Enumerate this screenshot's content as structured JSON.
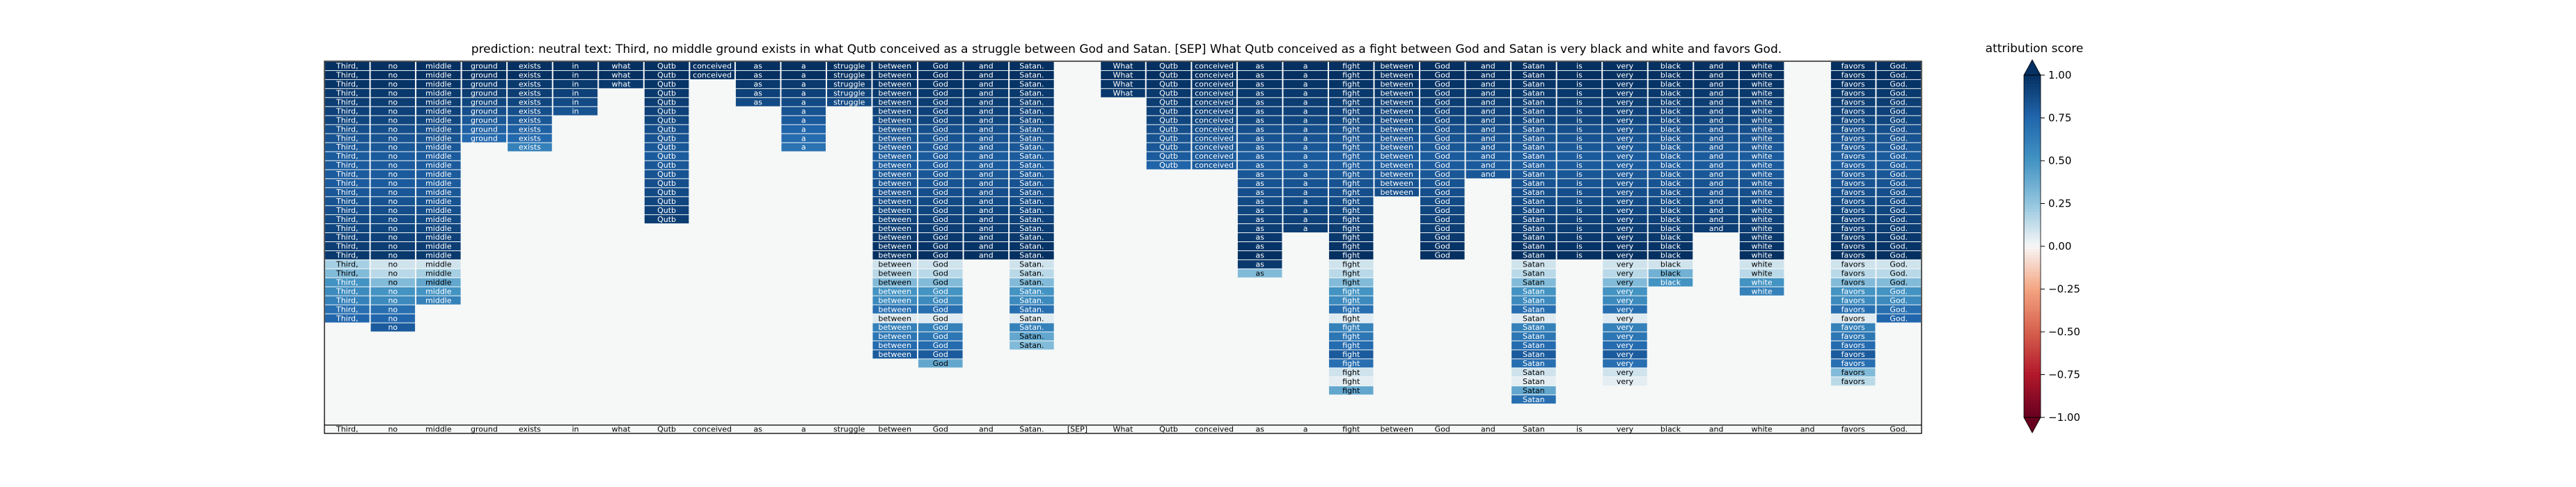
{
  "chart_data": {
    "type": "heatmap",
    "title": "prediction:  neutral     text:  Third, no middle ground exists in what Qutb conceived as a struggle between God and Satan. [SEP] What Qutb conceived as a fight between God and Satan is very black and white and favors God.",
    "tokens": [
      "Third,",
      "no",
      "middle",
      "ground",
      "exists",
      "in",
      "what",
      "Qutb",
      "conceived",
      "as",
      "a",
      "struggle",
      "between",
      "God",
      "and",
      "Satan.",
      "[SEP]",
      "What",
      "Qutb",
      "conceived",
      "as",
      "a",
      "fight",
      "between",
      "God",
      "and",
      "Satan",
      "is",
      "very",
      "black",
      "and",
      "white",
      "and",
      "favors",
      "God."
    ],
    "column_heights": [
      29,
      30,
      27,
      9,
      10,
      6,
      3,
      18,
      2,
      5,
      10,
      5,
      33,
      34,
      22,
      32,
      0,
      4,
      12,
      12,
      24,
      19,
      37,
      15,
      22,
      13,
      38,
      22,
      36,
      25,
      19,
      26,
      0,
      36,
      29
    ],
    "column_values": [
      [
        1.0,
        1.0,
        0.98,
        0.96,
        0.94,
        0.92,
        0.9,
        0.86,
        0.84,
        0.82,
        0.8,
        0.8,
        0.8,
        0.8,
        0.82,
        0.84,
        0.86,
        0.88,
        0.9,
        0.92,
        0.94,
        0.96,
        0.2,
        0.3,
        0.5,
        0.55,
        0.6,
        0.7,
        0.75
      ],
      [
        1.0,
        1.0,
        0.98,
        0.96,
        0.94,
        0.92,
        0.9,
        0.86,
        0.84,
        0.82,
        0.8,
        0.8,
        0.8,
        0.8,
        0.82,
        0.84,
        0.86,
        0.88,
        0.9,
        0.92,
        0.94,
        0.96,
        0.1,
        0.15,
        0.3,
        0.5,
        0.55,
        0.7,
        0.75,
        0.8
      ],
      [
        1.0,
        1.0,
        0.98,
        0.96,
        0.94,
        0.92,
        0.9,
        0.86,
        0.84,
        0.82,
        0.8,
        0.8,
        0.8,
        0.8,
        0.82,
        0.84,
        0.86,
        0.88,
        0.9,
        0.92,
        0.94,
        0.96,
        0.1,
        0.2,
        0.4,
        0.5,
        0.6
      ],
      [
        1.0,
        1.0,
        0.96,
        0.94,
        0.9,
        0.86,
        0.82,
        0.78,
        0.74
      ],
      [
        1.0,
        1.0,
        0.96,
        0.94,
        0.9,
        0.86,
        0.82,
        0.78,
        0.74,
        0.6
      ],
      [
        1.0,
        1.0,
        0.96,
        0.92,
        0.88,
        0.84
      ],
      [
        1.0,
        1.0,
        0.96
      ],
      [
        1.0,
        1.0,
        0.98,
        0.96,
        0.94,
        0.92,
        0.9,
        0.86,
        0.84,
        0.82,
        0.8,
        0.82,
        0.84,
        0.86,
        0.88,
        0.9,
        0.92,
        0.94
      ],
      [
        1.0,
        1.0
      ],
      [
        1.0,
        1.0,
        0.96,
        0.92,
        0.88
      ],
      [
        1.0,
        1.0,
        0.96,
        0.92,
        0.88,
        0.84,
        0.8,
        0.76,
        0.72,
        0.68
      ],
      [
        1.0,
        1.0,
        0.96,
        0.92,
        0.88
      ],
      [
        1.0,
        1.0,
        0.98,
        0.96,
        0.94,
        0.92,
        0.9,
        0.86,
        0.84,
        0.82,
        0.8,
        0.8,
        0.82,
        0.84,
        0.86,
        0.88,
        0.9,
        0.92,
        0.94,
        0.96,
        0.98,
        1.0,
        0.1,
        0.15,
        0.3,
        0.5,
        0.55,
        0.7,
        0.06,
        0.6,
        0.66,
        0.72,
        0.8
      ],
      [
        1.0,
        1.0,
        0.98,
        0.96,
        0.94,
        0.92,
        0.9,
        0.86,
        0.84,
        0.82,
        0.8,
        0.8,
        0.82,
        0.84,
        0.86,
        0.88,
        0.9,
        0.92,
        0.94,
        0.96,
        0.98,
        1.0,
        0.1,
        0.15,
        0.3,
        0.5,
        0.55,
        0.7,
        0.06,
        0.6,
        0.66,
        0.72,
        0.8,
        0.4
      ],
      [
        1.0,
        1.0,
        0.98,
        0.96,
        0.94,
        0.92,
        0.9,
        0.86,
        0.84,
        0.82,
        0.8,
        0.8,
        0.82,
        0.84,
        0.86,
        0.88,
        0.9,
        0.92,
        0.94,
        0.96,
        0.98,
        1.0
      ],
      [
        1.0,
        1.0,
        0.98,
        0.96,
        0.94,
        0.92,
        0.9,
        0.86,
        0.84,
        0.82,
        0.8,
        0.8,
        0.82,
        0.84,
        0.86,
        0.88,
        0.9,
        0.92,
        0.94,
        0.96,
        0.98,
        1.0,
        0.1,
        0.15,
        0.3,
        0.5,
        0.55,
        0.7,
        0.06,
        0.6,
        0.4,
        0.3
      ],
      [],
      [
        1.0,
        1.0,
        0.98,
        0.96
      ],
      [
        1.0,
        1.0,
        0.98,
        0.96,
        0.94,
        0.92,
        0.9,
        0.86,
        0.84,
        0.82,
        0.8,
        0.76
      ],
      [
        1.0,
        1.0,
        0.98,
        0.96,
        0.94,
        0.92,
        0.9,
        0.86,
        0.84,
        0.82,
        0.8,
        0.8
      ],
      [
        1.0,
        1.0,
        0.98,
        0.96,
        0.94,
        0.92,
        0.9,
        0.86,
        0.84,
        0.82,
        0.8,
        0.8,
        0.82,
        0.84,
        0.86,
        0.88,
        0.9,
        0.92,
        0.94,
        0.96,
        0.98,
        1.0,
        0.96,
        0.3
      ],
      [
        1.0,
        1.0,
        0.98,
        0.96,
        0.94,
        0.92,
        0.9,
        0.86,
        0.84,
        0.82,
        0.8,
        0.8,
        0.82,
        0.84,
        0.86,
        0.88,
        0.9,
        0.92,
        0.94
      ],
      [
        1.0,
        1.0,
        0.98,
        0.96,
        0.94,
        0.92,
        0.9,
        0.86,
        0.84,
        0.82,
        0.8,
        0.8,
        0.82,
        0.84,
        0.86,
        0.88,
        0.9,
        0.92,
        0.94,
        0.96,
        0.98,
        1.0,
        0.1,
        0.15,
        0.3,
        0.5,
        0.55,
        0.7,
        0.06,
        0.6,
        0.66,
        0.72,
        0.8,
        0.7,
        0.1,
        0.05,
        0.4
      ],
      [
        1.0,
        1.0,
        0.98,
        0.96,
        0.94,
        0.92,
        0.9,
        0.86,
        0.84,
        0.82,
        0.8,
        0.8,
        0.82,
        0.84,
        0.86
      ],
      [
        1.0,
        1.0,
        0.98,
        0.96,
        0.94,
        0.92,
        0.9,
        0.86,
        0.84,
        0.82,
        0.8,
        0.8,
        0.82,
        0.84,
        0.86,
        0.88,
        0.9,
        0.92,
        0.94,
        0.96,
        0.98,
        1.0
      ],
      [
        1.0,
        1.0,
        0.98,
        0.96,
        0.94,
        0.92,
        0.9,
        0.86,
        0.84,
        0.82,
        0.8,
        0.8,
        0.82
      ],
      [
        1.0,
        1.0,
        0.98,
        0.96,
        0.94,
        0.92,
        0.9,
        0.86,
        0.84,
        0.82,
        0.8,
        0.8,
        0.82,
        0.84,
        0.86,
        0.88,
        0.9,
        0.92,
        0.94,
        0.96,
        0.98,
        1.0,
        0.1,
        0.15,
        0.3,
        0.5,
        0.55,
        0.7,
        0.06,
        0.6,
        0.66,
        0.72,
        0.8,
        0.7,
        0.1,
        0.05,
        0.4,
        0.7
      ],
      [
        1.0,
        1.0,
        0.98,
        0.96,
        0.94,
        0.92,
        0.9,
        0.86,
        0.84,
        0.82,
        0.8,
        0.8,
        0.82,
        0.84,
        0.86,
        0.88,
        0.9,
        0.92,
        0.94,
        0.96,
        0.98,
        1.0
      ],
      [
        1.0,
        1.0,
        0.98,
        0.96,
        0.94,
        0.92,
        0.9,
        0.86,
        0.84,
        0.82,
        0.8,
        0.8,
        0.82,
        0.84,
        0.86,
        0.88,
        0.9,
        0.92,
        0.94,
        0.96,
        0.98,
        1.0,
        0.1,
        0.15,
        0.3,
        0.5,
        0.55,
        0.7,
        0.06,
        0.6,
        0.66,
        0.72,
        0.8,
        0.7,
        0.1,
        0.05
      ],
      [
        1.0,
        1.0,
        0.98,
        0.96,
        0.94,
        0.92,
        0.9,
        0.86,
        0.84,
        0.82,
        0.8,
        0.8,
        0.82,
        0.84,
        0.86,
        0.88,
        0.9,
        0.92,
        0.94,
        0.96,
        0.98,
        1.0,
        0.1,
        0.35,
        0.5
      ],
      [
        1.0,
        1.0,
        0.98,
        0.96,
        0.94,
        0.92,
        0.9,
        0.86,
        0.84,
        0.82,
        0.8,
        0.8,
        0.82,
        0.84,
        0.86,
        0.88,
        0.9,
        0.92,
        0.94
      ],
      [
        1.0,
        1.0,
        0.98,
        0.96,
        0.94,
        0.92,
        0.9,
        0.86,
        0.84,
        0.82,
        0.8,
        0.8,
        0.82,
        0.84,
        0.86,
        0.88,
        0.9,
        0.92,
        0.94,
        0.96,
        0.98,
        1.0,
        0.1,
        0.15,
        0.5,
        0.6
      ],
      [],
      [
        1.0,
        1.0,
        0.98,
        0.96,
        0.94,
        0.92,
        0.9,
        0.86,
        0.84,
        0.82,
        0.8,
        0.8,
        0.82,
        0.84,
        0.86,
        0.88,
        0.9,
        0.92,
        0.94,
        0.96,
        0.98,
        1.0,
        0.1,
        0.15,
        0.3,
        0.5,
        0.55,
        0.7,
        0.06,
        0.6,
        0.66,
        0.72,
        0.8,
        0.7,
        0.3,
        0.15
      ],
      [
        1.0,
        1.0,
        0.98,
        0.96,
        0.94,
        0.92,
        0.9,
        0.86,
        0.84,
        0.82,
        0.8,
        0.8,
        0.82,
        0.84,
        0.86,
        0.88,
        0.9,
        0.92,
        0.94,
        0.96,
        0.98,
        1.0,
        0.1,
        0.15,
        0.3,
        0.5,
        0.55,
        0.7,
        0.75
      ]
    ],
    "colorbar": {
      "label": "attribution score",
      "ticks": [
        "1.00",
        "0.75",
        "0.50",
        "0.25",
        "0.00",
        "−0.25",
        "−0.50",
        "−0.75",
        "−1.00"
      ],
      "range": [
        -1.0,
        1.0
      ]
    },
    "colors": {
      "background": "#f5f8f7",
      "strong_positive": "#053061",
      "neutral": "#f7f7f7",
      "strong_negative": "#67001f"
    }
  }
}
